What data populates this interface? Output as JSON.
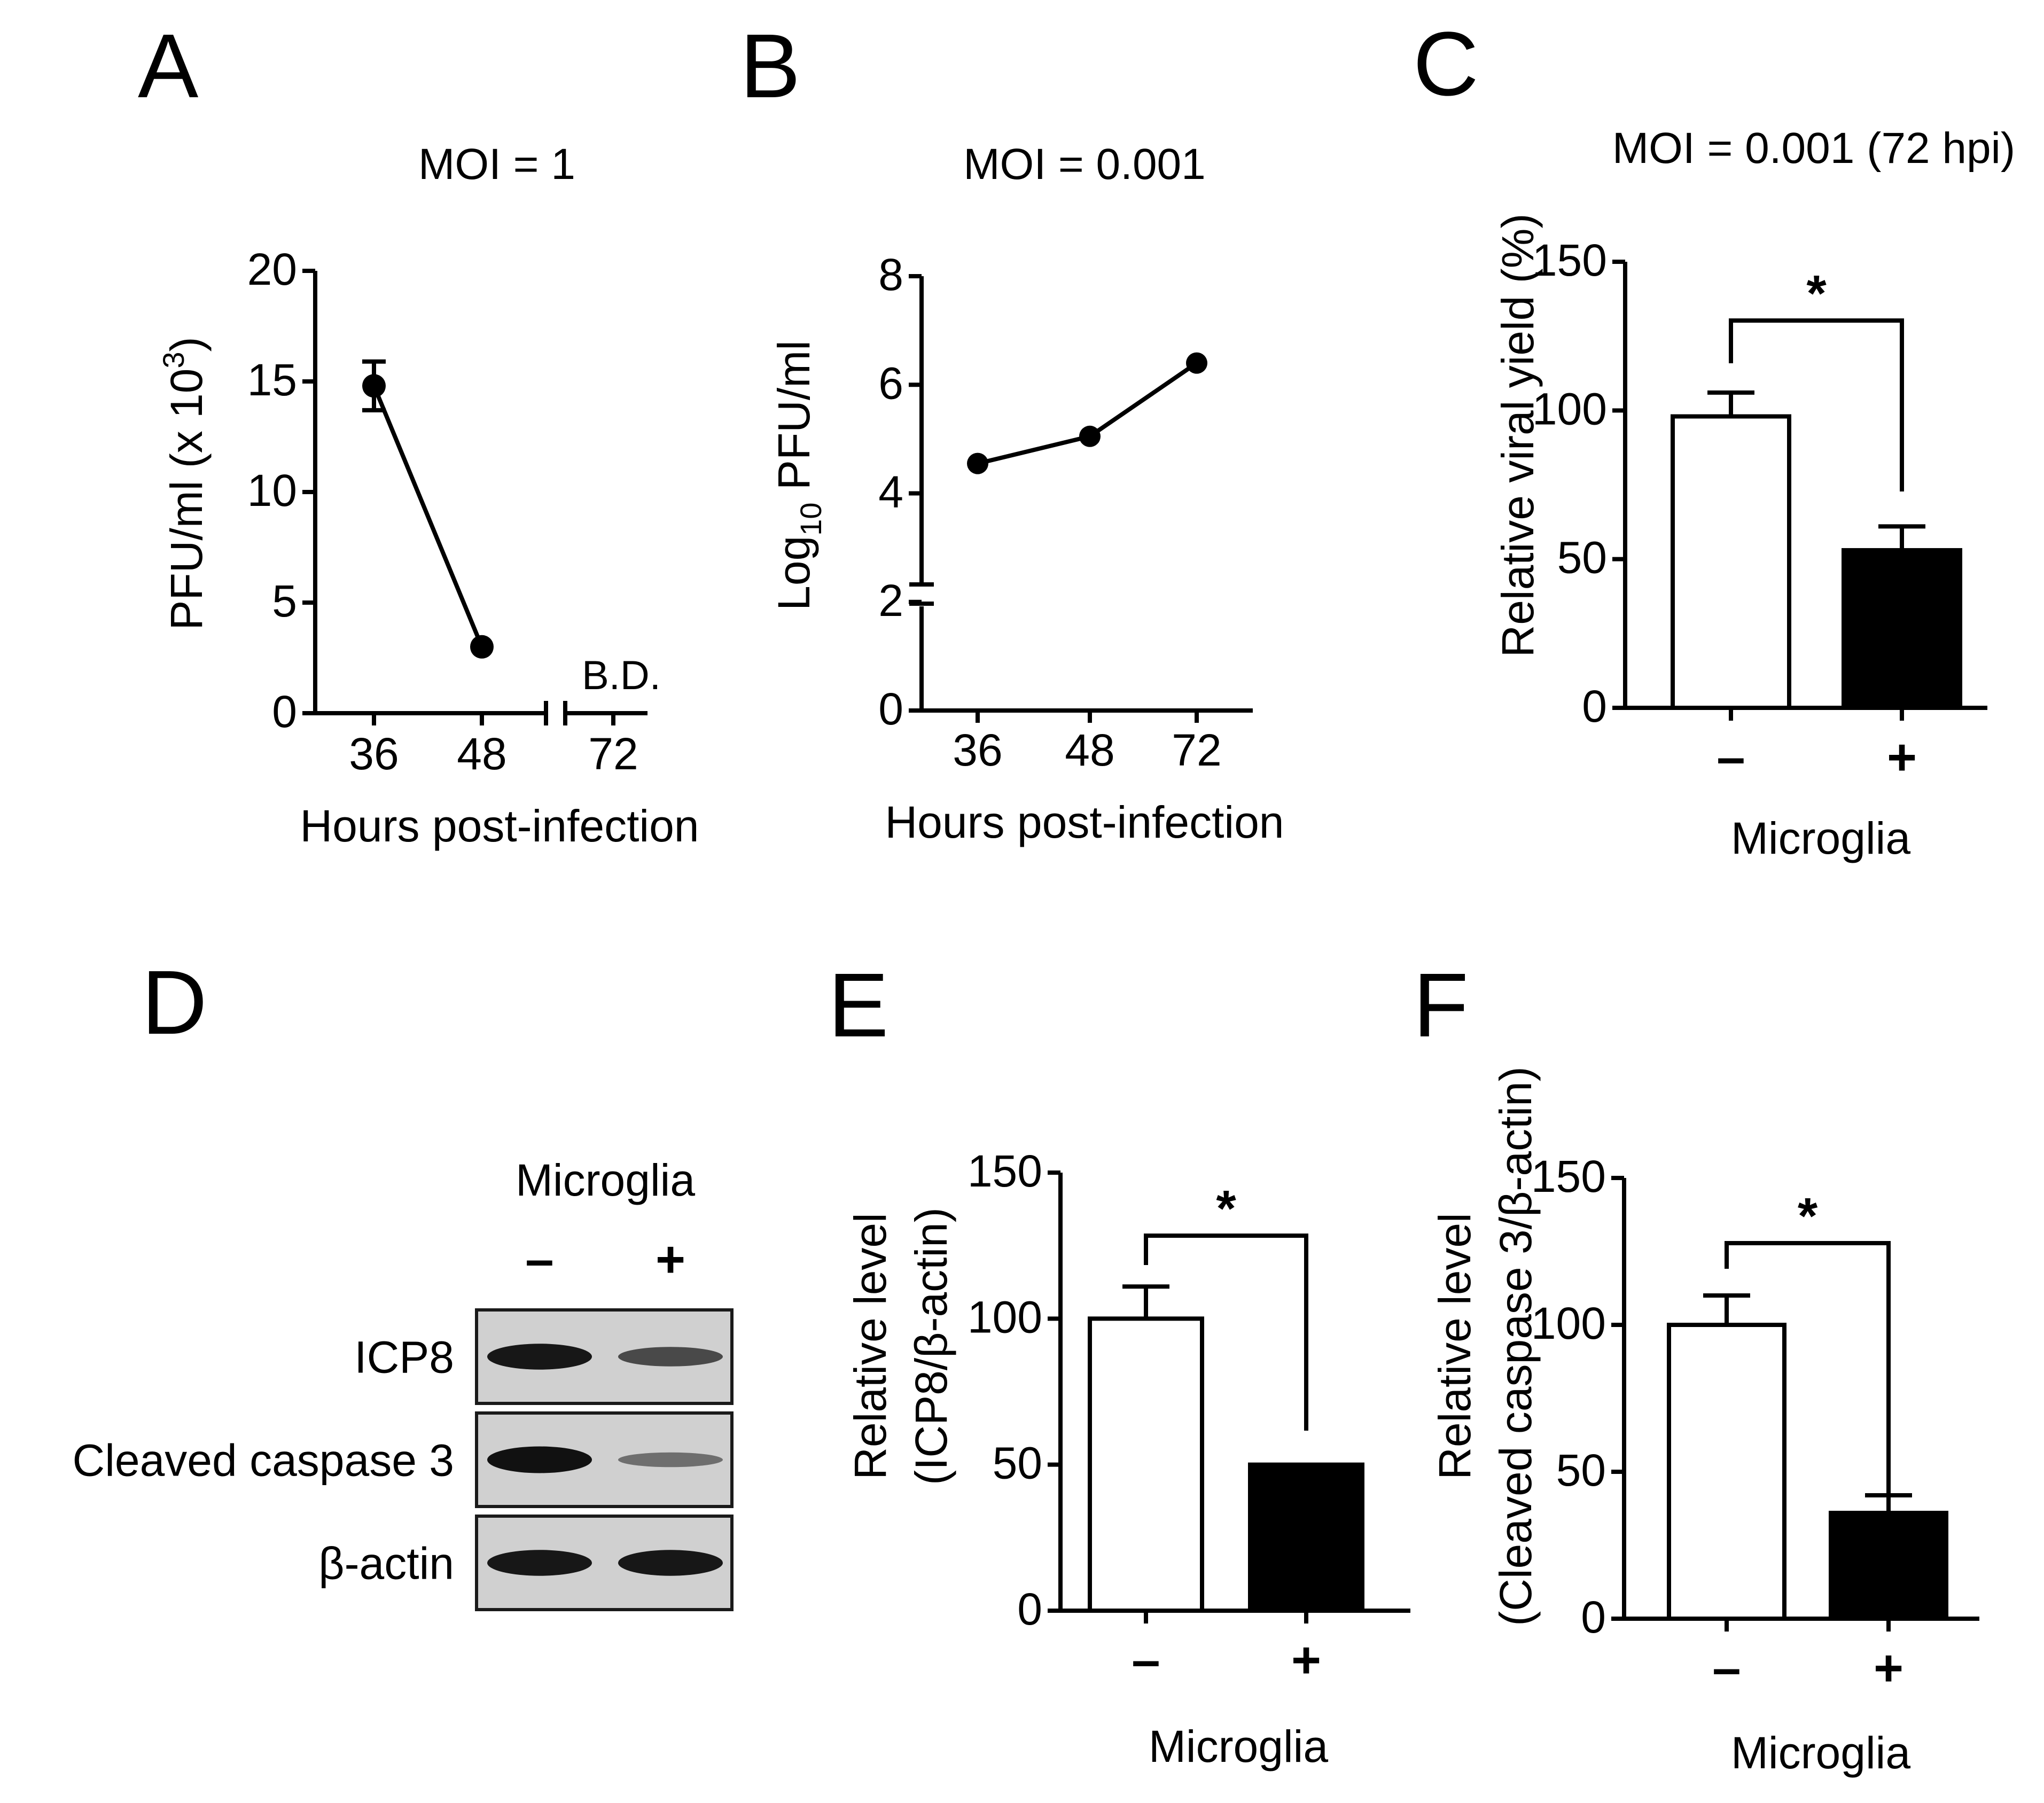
{
  "colors": {
    "ink": "#000000",
    "paper": "#ffffff",
    "blot_frame": "#1a1a1a",
    "blot_bg": "#d0d0d0",
    "band": "#111111"
  },
  "chart_data": [
    {
      "panel": "A",
      "type": "line",
      "title": "MOI = 1",
      "xlabel": "Hours post-infection",
      "ylabel_base": "PFU/ml (x 10",
      "ylabel_exp": "3",
      "ylabel_end": ")",
      "x": [
        36,
        48,
        72
      ],
      "y": [
        14.8,
        3.0,
        null
      ],
      "yerr": [
        1.1,
        0,
        0
      ],
      "below_detection_label": "B.D.",
      "ylim": [
        0,
        20
      ],
      "yticks": [
        0,
        5,
        10,
        15,
        20
      ],
      "xtick_labels": [
        "36",
        "48",
        "72"
      ]
    },
    {
      "panel": "B",
      "type": "line",
      "title": "MOI = 0.001",
      "xlabel": "Hours post-infection",
      "ylabel_base": "Log",
      "ylabel_sub": "10",
      "ylabel_end": " PFU/ml",
      "x": [
        36,
        48,
        72
      ],
      "y": [
        4.55,
        5.05,
        6.4
      ],
      "ylim": [
        0,
        8
      ],
      "yticks": [
        0,
        2,
        4,
        6,
        8
      ],
      "axis_break_between": [
        0,
        2
      ],
      "xtick_labels": [
        "36",
        "48",
        "72"
      ]
    },
    {
      "panel": "C",
      "type": "bar",
      "title": "MOI = 0.001 (72 hpi)",
      "xlabel": "Microglia",
      "ylabel": "Relative viral yield (%)",
      "categories": [
        "–",
        "+"
      ],
      "values": [
        98,
        53
      ],
      "yerr": [
        8,
        8
      ],
      "bar_colors": [
        "#ffffff",
        "#000000"
      ],
      "significance": "*",
      "ylim": [
        0,
        150
      ],
      "yticks": [
        0,
        50,
        100,
        150
      ]
    },
    {
      "panel": "E",
      "type": "bar",
      "title": "",
      "xlabel": "Microglia",
      "ylabel_lines": [
        "Relative level",
        "(ICP8/β-actin)"
      ],
      "categories": [
        "–",
        "+"
      ],
      "values": [
        100,
        50
      ],
      "yerr": [
        11,
        0
      ],
      "bar_colors": [
        "#ffffff",
        "#000000"
      ],
      "significance": "*",
      "ylim": [
        0,
        150
      ],
      "yticks": [
        0,
        50,
        100,
        150
      ]
    },
    {
      "panel": "F",
      "type": "bar",
      "title": "",
      "xlabel": "Microglia",
      "ylabel_lines": [
        "Relative level",
        "(Cleaved caspase 3/β-actin)"
      ],
      "categories": [
        "–",
        "+"
      ],
      "values": [
        100,
        36
      ],
      "yerr": [
        10,
        6
      ],
      "bar_colors": [
        "#ffffff",
        "#000000"
      ],
      "significance": "*",
      "ylim": [
        0,
        150
      ],
      "yticks": [
        0,
        50,
        100,
        150
      ]
    }
  ],
  "blot": {
    "panel": "D",
    "header": "Microglia",
    "lanes": [
      "–",
      "+"
    ],
    "rows": [
      {
        "label": "ICP8",
        "intensities": [
          0.95,
          0.55
        ]
      },
      {
        "label": "Cleaved caspase 3",
        "intensities": [
          1.0,
          0.25
        ]
      },
      {
        "label": "β-actin",
        "intensities": [
          0.95,
          0.95
        ]
      }
    ]
  }
}
